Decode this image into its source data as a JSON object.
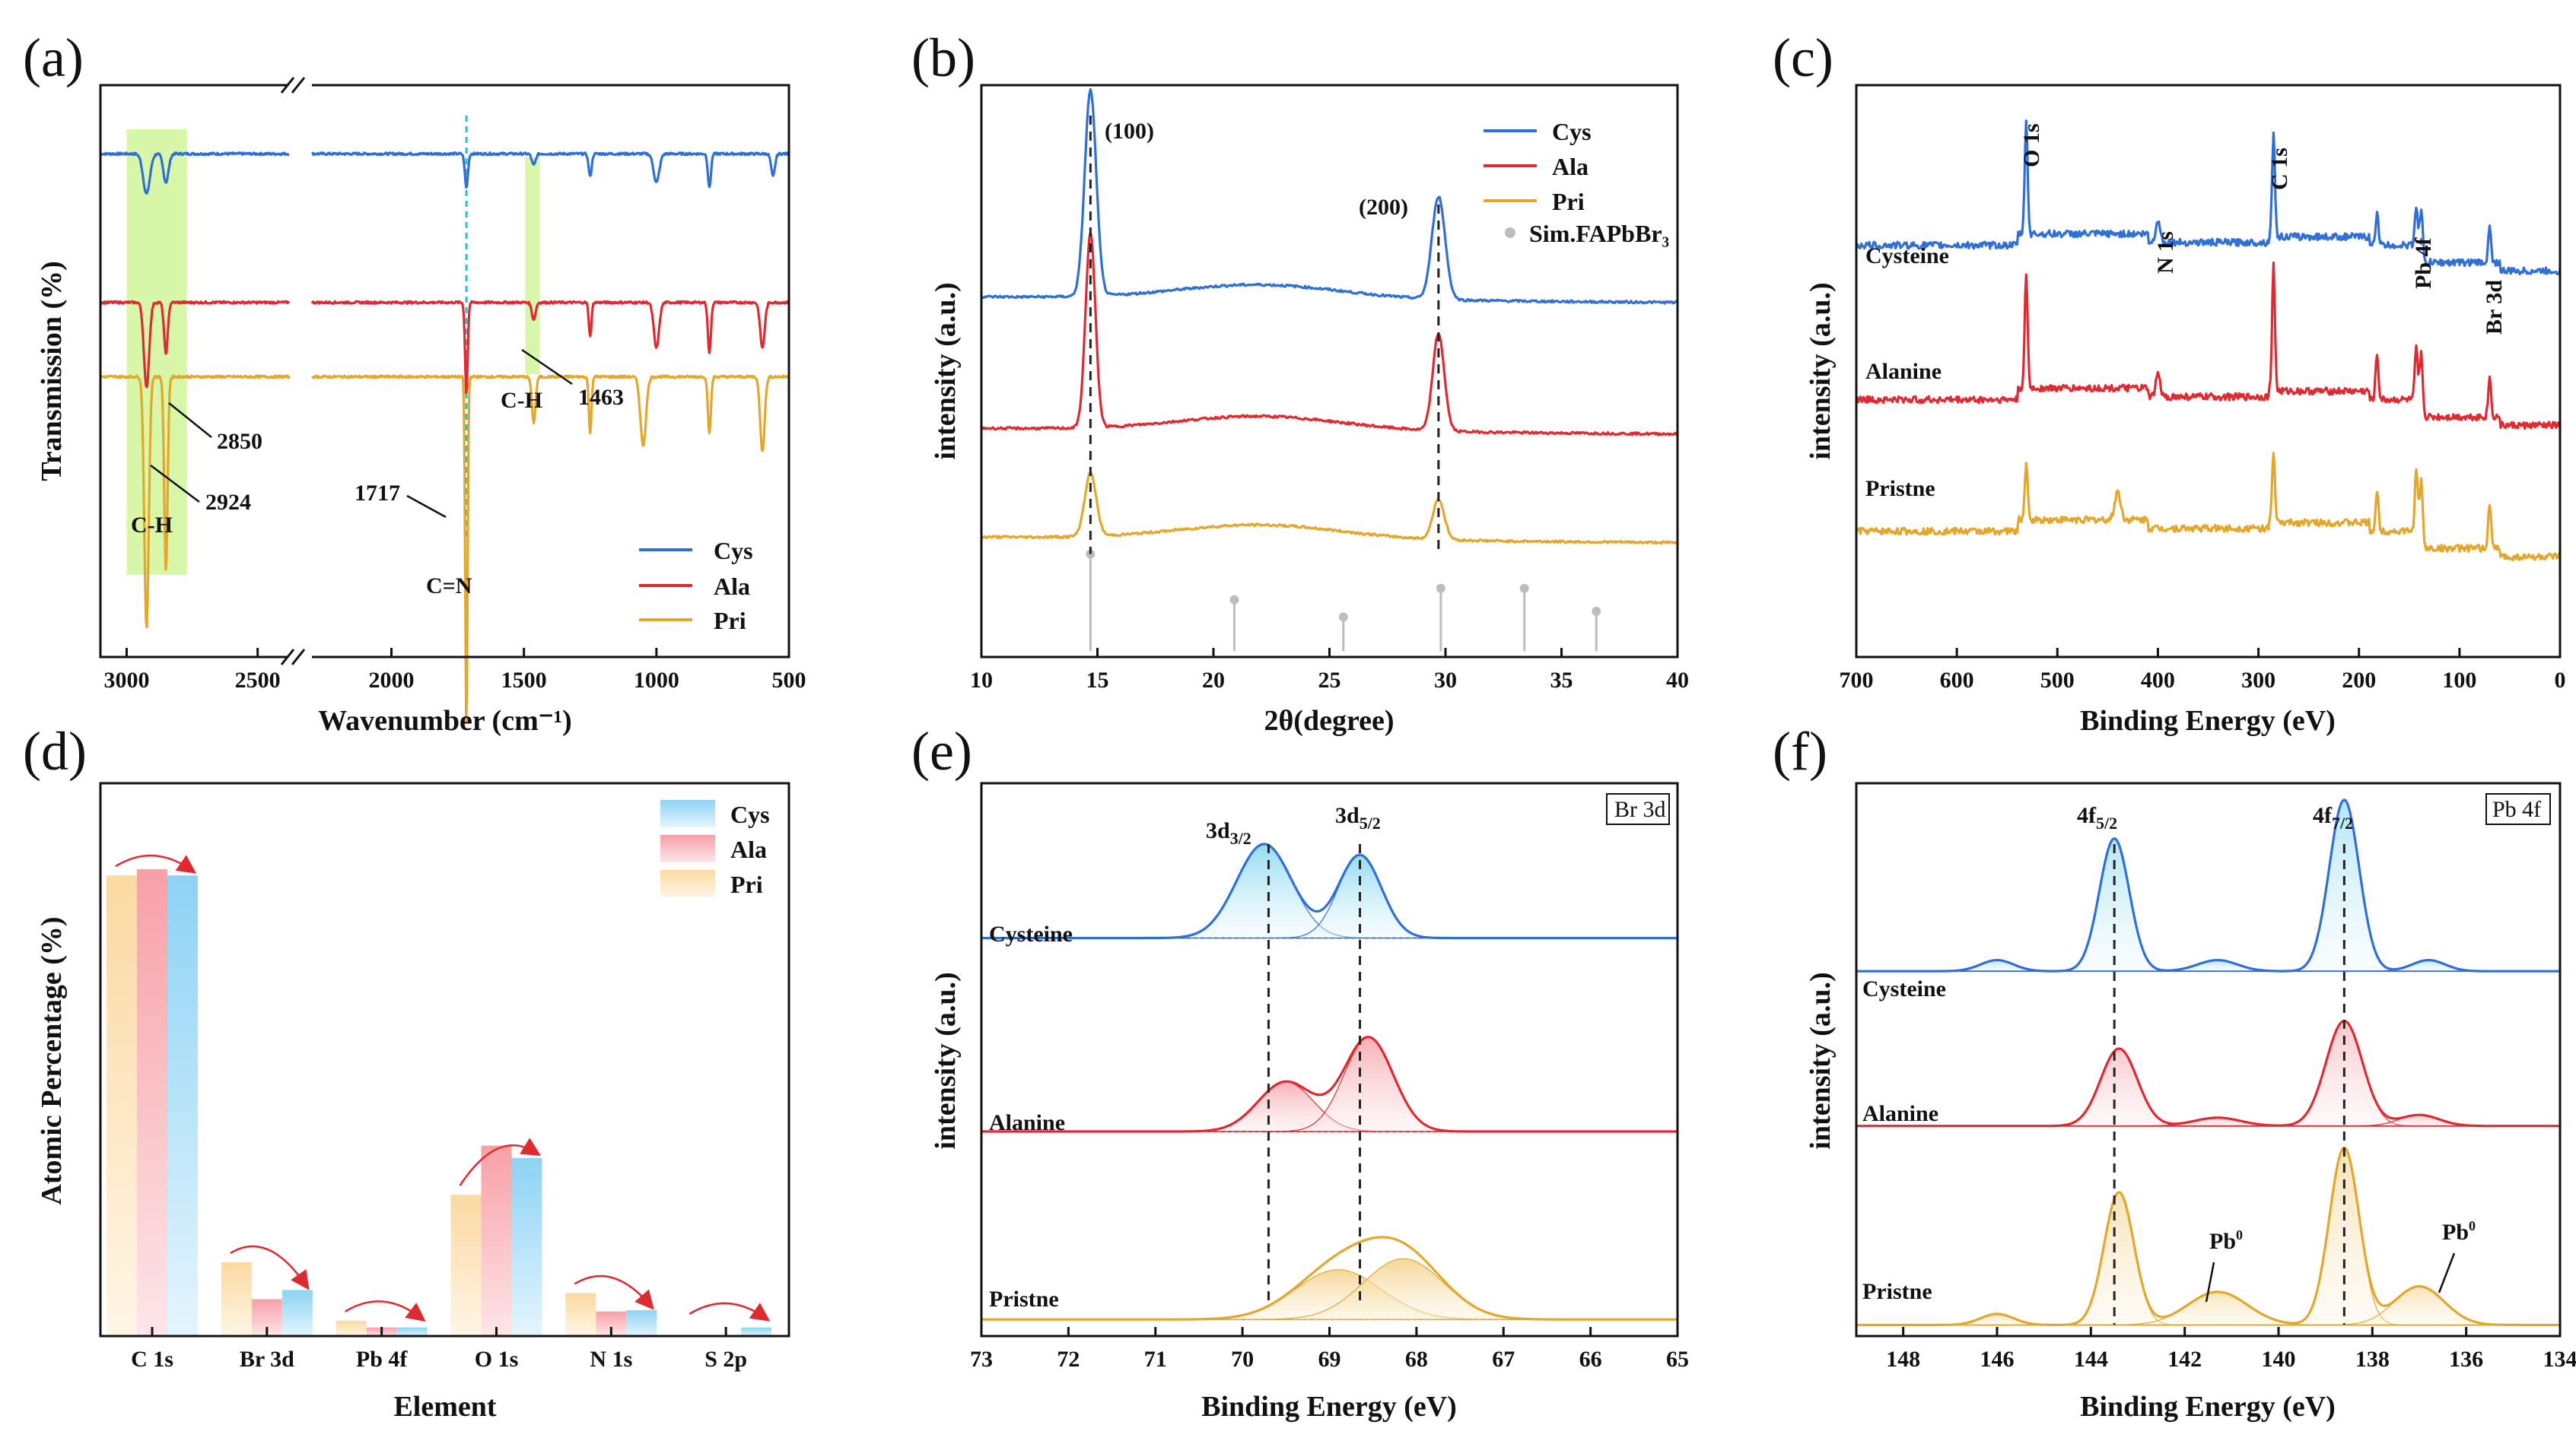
{
  "colors": {
    "cys": "#2f6fd6",
    "ala": "#e02a32",
    "pri": "#e3a72d",
    "cys_label": "#20a8e6",
    "ala_label": "#ee3a3a",
    "pri_label": "#e7ad38",
    "xps_peak_label": "#f1a77a",
    "highlight": "#d9f7a8",
    "cn_line": "#25c0d8"
  },
  "chart_data": [
    {
      "id": "a",
      "type": "line",
      "panel_label": "(a)",
      "xlabel": "Wavenumber (cm⁻¹)",
      "ylabel": "Transmission (%)",
      "x_ticks_left": [
        "3000",
        "2500"
      ],
      "x_ticks_right": [
        "2000",
        "1500",
        "1000",
        "500"
      ],
      "xlim": [
        3100,
        500
      ],
      "axis_break_between": [
        2380,
        2300
      ],
      "legend": [
        "Cys",
        "Ala",
        "Pri"
      ],
      "annotations": {
        "ch_left": "C-H",
        "p2924": "2924",
        "p2850": "2850",
        "p1717": "1717",
        "cn": "C=N",
        "ch_right": "C-H",
        "p1463": "1463"
      },
      "series": [
        {
          "name": "Cys",
          "offset": 0.88,
          "peaks": [
            [
              2924,
              0.07,
              18
            ],
            [
              2850,
              0.05,
              14
            ],
            [
              1717,
              0.06,
              8
            ],
            [
              1463,
              0.02,
              10
            ],
            [
              1250,
              0.04,
              8
            ],
            [
              1000,
              0.05,
              15
            ],
            [
              800,
              0.06,
              8
            ],
            [
              560,
              0.04,
              10
            ]
          ]
        },
        {
          "name": "Ala",
          "offset": 0.62,
          "peaks": [
            [
              2924,
              0.15,
              14
            ],
            [
              2850,
              0.09,
              10
            ],
            [
              1717,
              0.16,
              7
            ],
            [
              1463,
              0.03,
              10
            ],
            [
              1250,
              0.06,
              7
            ],
            [
              1000,
              0.08,
              14
            ],
            [
              800,
              0.09,
              8
            ],
            [
              600,
              0.08,
              12
            ]
          ]
        },
        {
          "name": "Pri",
          "offset": 0.49,
          "peaks": [
            [
              2924,
              0.44,
              12
            ],
            [
              2850,
              0.34,
              9
            ],
            [
              1717,
              0.62,
              6
            ],
            [
              1463,
              0.08,
              10
            ],
            [
              1250,
              0.1,
              7
            ],
            [
              1050,
              0.12,
              15
            ],
            [
              800,
              0.1,
              8
            ],
            [
              600,
              0.13,
              12
            ]
          ]
        }
      ]
    },
    {
      "id": "b",
      "type": "line",
      "panel_label": "(b)",
      "xlabel": "2θ(degree)",
      "ylabel": "intensity (a.u.)",
      "xlim": [
        10,
        40
      ],
      "x_ticks": [
        "10",
        "15",
        "20",
        "25",
        "30",
        "35",
        "40"
      ],
      "peak_labels": {
        "p100": "(100)",
        "p200": "(200)"
      },
      "legend": [
        "Cys",
        "Ala",
        "Pri",
        "Sim.FAPbBr₃"
      ],
      "series": [
        {
          "name": "Cys",
          "offset": 0.63,
          "peaks": [
            [
              14.7,
              0.36,
              0.35
            ],
            [
              29.7,
              0.18,
              0.4
            ]
          ]
        },
        {
          "name": "Ala",
          "offset": 0.4,
          "peaks": [
            [
              14.7,
              0.34,
              0.3
            ],
            [
              29.7,
              0.17,
              0.35
            ]
          ]
        },
        {
          "name": "Pri",
          "offset": 0.21,
          "peaks": [
            [
              14.7,
              0.11,
              0.35
            ],
            [
              29.7,
              0.07,
              0.35
            ]
          ]
        }
      ],
      "sim_sticks": [
        [
          14.7,
          0.17
        ],
        [
          20.9,
          0.09
        ],
        [
          25.6,
          0.06
        ],
        [
          29.8,
          0.11
        ],
        [
          33.4,
          0.11
        ],
        [
          36.5,
          0.07
        ]
      ]
    },
    {
      "id": "c",
      "type": "line",
      "panel_label": "(c)",
      "xlabel": "Binding Energy (eV)",
      "ylabel": "intensity (a.u.)",
      "xlim": [
        700,
        0
      ],
      "x_ticks": [
        "700",
        "600",
        "500",
        "400",
        "300",
        "200",
        "100",
        "0"
      ],
      "peak_labels": [
        "O 1s",
        "N 1s",
        "C 1s",
        "Pb 4f",
        "Br 3d"
      ],
      "series_labels": [
        "Cysteine",
        "Alanine",
        "Pristne"
      ],
      "series": [
        {
          "name": "Cysteine",
          "offset": 0.72,
          "peaks": [
            [
              531,
              0.2,
              2
            ],
            [
              400,
              0.04,
              3
            ],
            [
              285,
              0.18,
              2
            ],
            [
              182,
              0.06,
              2
            ],
            [
              138,
              0.09,
              2
            ],
            [
              143,
              0.07,
              2
            ],
            [
              70,
              0.06,
              2
            ]
          ]
        },
        {
          "name": "Alanine",
          "offset": 0.45,
          "peaks": [
            [
              531,
              0.2,
              2
            ],
            [
              400,
              0.04,
              3
            ],
            [
              285,
              0.22,
              2
            ],
            [
              182,
              0.08,
              2
            ],
            [
              138,
              0.11,
              2
            ],
            [
              143,
              0.09,
              2
            ],
            [
              70,
              0.07,
              2
            ]
          ]
        },
        {
          "name": "Pristne",
          "offset": 0.22,
          "peaks": [
            [
              531,
              0.1,
              2
            ],
            [
              440,
              0.05,
              4
            ],
            [
              285,
              0.12,
              2
            ],
            [
              182,
              0.07,
              2
            ],
            [
              138,
              0.12,
              2
            ],
            [
              143,
              0.11,
              2
            ],
            [
              70,
              0.08,
              2
            ]
          ]
        }
      ]
    },
    {
      "id": "d",
      "type": "bar",
      "panel_label": "(d)",
      "xlabel": "Element",
      "ylabel": "Atomic Percentage (%)",
      "categories": [
        "C 1s",
        "Br 3d",
        "Pb 4f",
        "O 1s",
        "N 1s",
        "S 2p"
      ],
      "ylim": [
        0,
        90
      ],
      "legend": [
        "Cys",
        "Ala",
        "Pri"
      ],
      "series": [
        {
          "name": "Pri",
          "values": [
            75,
            12,
            2.5,
            23,
            7,
            0
          ]
        },
        {
          "name": "Ala",
          "values": [
            76,
            6,
            1.4,
            31,
            4,
            0
          ]
        },
        {
          "name": "Cys",
          "values": [
            75,
            7.5,
            1.4,
            29,
            4.2,
            1.4
          ]
        }
      ]
    },
    {
      "id": "e",
      "type": "line",
      "panel_label": "(e)",
      "xlabel": "Binding Energy (eV)",
      "ylabel": "intensity (a.u.)",
      "xlim": [
        73,
        65
      ],
      "x_ticks": [
        "73",
        "72",
        "71",
        "70",
        "69",
        "68",
        "67",
        "66",
        "65"
      ],
      "box_label": "Br 3d",
      "peak_labels": {
        "d32": "3d",
        "d32_sub": "3/2",
        "d52": "3d",
        "d52_sub": "5/2"
      },
      "series_labels": [
        "Cysteine",
        "Alanine",
        "Pristne"
      ],
      "dashed_x": [
        69.7,
        68.65
      ],
      "series": [
        {
          "name": "Cysteine",
          "baseline": 0.72,
          "components": [
            [
              69.75,
              0.17,
              0.45
            ],
            [
              68.65,
              0.15,
              0.35
            ]
          ]
        },
        {
          "name": "Alanine",
          "baseline": 0.37,
          "components": [
            [
              69.5,
              0.09,
              0.45
            ],
            [
              68.55,
              0.17,
              0.4
            ]
          ]
        },
        {
          "name": "Pristne",
          "baseline": 0.03,
          "components": [
            [
              68.9,
              0.09,
              0.7
            ],
            [
              68.15,
              0.11,
              0.65
            ]
          ]
        }
      ]
    },
    {
      "id": "f",
      "type": "line",
      "panel_label": "(f)",
      "xlabel": "Binding Energy (eV)",
      "ylabel": "intensity (a.u.)",
      "xlim": [
        149,
        134
      ],
      "x_ticks": [
        "148",
        "146",
        "144",
        "142",
        "140",
        "138",
        "136",
        "134"
      ],
      "box_label": "Pb 4f",
      "peak_labels": {
        "f52": "4f",
        "f52_sub": "5/2",
        "f72": "4f",
        "f72_sub": "7/2",
        "pb0_left": "Pb",
        "pb0_right": "Pb",
        "pb0_sup": "0"
      },
      "series_labels": [
        "Cysteine",
        "Alanine",
        "Pristne"
      ],
      "dashed_x": [
        143.5,
        138.6
      ],
      "series": [
        {
          "name": "Cysteine",
          "baseline": 0.66,
          "components": [
            [
              143.5,
              0.24,
              0.45
            ],
            [
              138.6,
              0.31,
              0.45
            ],
            [
              146.0,
              0.02,
              0.5
            ],
            [
              141.3,
              0.02,
              0.6
            ],
            [
              136.8,
              0.02,
              0.5
            ]
          ]
        },
        {
          "name": "Alanine",
          "baseline": 0.38,
          "components": [
            [
              143.4,
              0.14,
              0.55
            ],
            [
              138.6,
              0.19,
              0.55
            ],
            [
              141.3,
              0.015,
              0.7
            ],
            [
              137.0,
              0.02,
              0.6
            ]
          ]
        },
        {
          "name": "Pristne",
          "baseline": 0.02,
          "components": [
            [
              143.4,
              0.24,
              0.45
            ],
            [
              141.3,
              0.06,
              0.9
            ],
            [
              138.6,
              0.32,
              0.45
            ],
            [
              137.0,
              0.07,
              0.75
            ],
            [
              146.0,
              0.02,
              0.5
            ]
          ]
        }
      ]
    }
  ]
}
